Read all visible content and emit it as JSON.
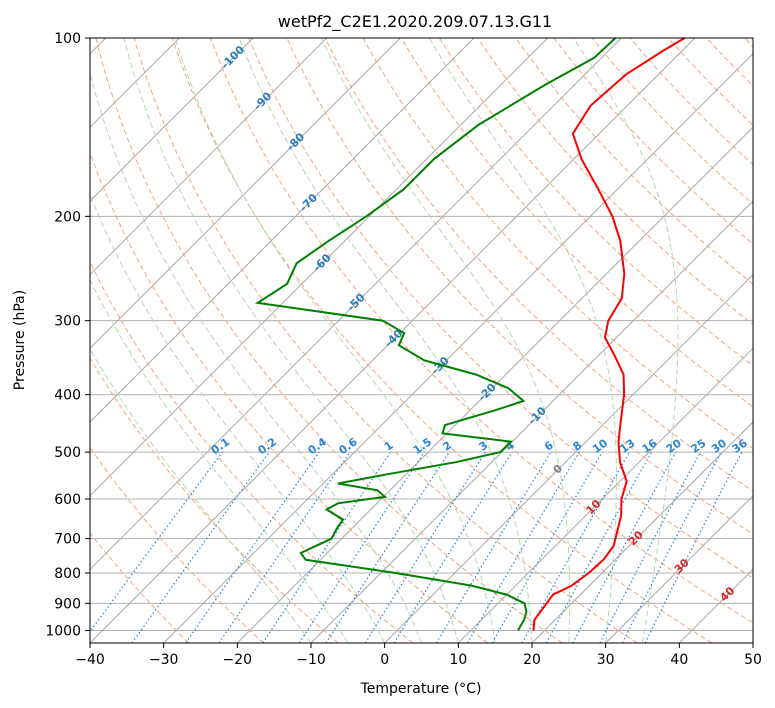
{
  "chart_data": {
    "type": "line",
    "title": "wetPf2_C2E1.2020.209.07.13.G11",
    "xlabel": "Temperature (°C)",
    "ylabel": "Pressure (hPa)",
    "xlim": [
      -40,
      50
    ],
    "ylim": [
      1050,
      100
    ],
    "y_scale": "log",
    "skew": "skew-T log-P diagram (isotherms slanted 45°)",
    "grid": true,
    "x_ticks": [
      "−40",
      "−30",
      "−20",
      "−10",
      "0",
      "10",
      "20",
      "30",
      "40",
      "50"
    ],
    "y_ticks": [
      "1000",
      "900",
      "800",
      "700",
      "600",
      "500",
      "400",
      "300",
      "200",
      "100"
    ],
    "temperature_profile": {
      "color": "#ff0000",
      "points": [
        {
          "p": 1000,
          "t": 18.5
        },
        {
          "p": 960,
          "t": 17.2
        },
        {
          "p": 930,
          "t": 16.9
        },
        {
          "p": 900,
          "t": 16.6
        },
        {
          "p": 870,
          "t": 16.3
        },
        {
          "p": 840,
          "t": 17.6
        },
        {
          "p": 800,
          "t": 18.2
        },
        {
          "p": 760,
          "t": 18.4
        },
        {
          "p": 720,
          "t": 17.9
        },
        {
          "p": 680,
          "t": 16.4
        },
        {
          "p": 640,
          "t": 14.8
        },
        {
          "p": 600,
          "t": 12.6
        },
        {
          "p": 560,
          "t": 10.9
        },
        {
          "p": 520,
          "t": 7.4
        },
        {
          "p": 480,
          "t": 4.4
        },
        {
          "p": 440,
          "t": 1.7
        },
        {
          "p": 400,
          "t": -1.2
        },
        {
          "p": 370,
          "t": -4.0
        },
        {
          "p": 345,
          "t": -7.6
        },
        {
          "p": 320,
          "t": -11.6
        },
        {
          "p": 300,
          "t": -13.4
        },
        {
          "p": 275,
          "t": -14.6
        },
        {
          "p": 250,
          "t": -17.6
        },
        {
          "p": 220,
          "t": -22.6
        },
        {
          "p": 200,
          "t": -27.0
        },
        {
          "p": 180,
          "t": -32.6
        },
        {
          "p": 160,
          "t": -39.0
        },
        {
          "p": 145,
          "t": -43.6
        },
        {
          "p": 130,
          "t": -45.0
        },
        {
          "p": 115,
          "t": -44.4
        },
        {
          "p": 105,
          "t": -42.6
        },
        {
          "p": 100,
          "t": -41.4
        }
      ]
    },
    "dewpoint_profile": {
      "color": "#008000",
      "points": [
        {
          "p": 1000,
          "t": 16.4
        },
        {
          "p": 960,
          "t": 15.8
        },
        {
          "p": 930,
          "t": 15.0
        },
        {
          "p": 900,
          "t": 13.6
        },
        {
          "p": 870,
          "t": 10.0
        },
        {
          "p": 840,
          "t": 4.0
        },
        {
          "p": 800,
          "t": -8.0
        },
        {
          "p": 760,
          "t": -22.0
        },
        {
          "p": 740,
          "t": -23.6
        },
        {
          "p": 700,
          "t": -21.4
        },
        {
          "p": 670,
          "t": -22.1
        },
        {
          "p": 650,
          "t": -22.4
        },
        {
          "p": 625,
          "t": -26.0
        },
        {
          "p": 610,
          "t": -25.3
        },
        {
          "p": 595,
          "t": -19.8
        },
        {
          "p": 580,
          "t": -21.7
        },
        {
          "p": 565,
          "t": -28.0
        },
        {
          "p": 545,
          "t": -22.6
        },
        {
          "p": 520,
          "t": -14.9
        },
        {
          "p": 500,
          "t": -10.2
        },
        {
          "p": 480,
          "t": -10.2
        },
        {
          "p": 465,
          "t": -20.6
        },
        {
          "p": 450,
          "t": -21.4
        },
        {
          "p": 425,
          "t": -16.6
        },
        {
          "p": 410,
          "t": -14.0
        },
        {
          "p": 390,
          "t": -17.8
        },
        {
          "p": 370,
          "t": -24.0
        },
        {
          "p": 350,
          "t": -33.0
        },
        {
          "p": 330,
          "t": -38.5
        },
        {
          "p": 315,
          "t": -39.4
        },
        {
          "p": 300,
          "t": -44.0
        },
        {
          "p": 280,
          "t": -63.4
        },
        {
          "p": 260,
          "t": -62.0
        },
        {
          "p": 240,
          "t": -63.5
        },
        {
          "p": 220,
          "t": -62.2
        },
        {
          "p": 200,
          "t": -60.4
        },
        {
          "p": 180,
          "t": -59.0
        },
        {
          "p": 160,
          "t": -59.0
        },
        {
          "p": 140,
          "t": -57.6
        },
        {
          "p": 120,
          "t": -54.0
        },
        {
          "p": 108,
          "t": -51.0
        },
        {
          "p": 100,
          "t": -50.8
        }
      ]
    },
    "reference_lines": {
      "dry_adiabats": {
        "color": "#d2691e",
        "labels": [],
        "values": [
          -30,
          -20,
          -10,
          0,
          10,
          20,
          30,
          40,
          50,
          60,
          70,
          80,
          90,
          100,
          110,
          120,
          130,
          140,
          150,
          160,
          170,
          180,
          190,
          200,
          210,
          220,
          230,
          240,
          250
        ]
      },
      "moist_adiabats": {
        "color": "#008000",
        "values": [
          -10,
          -5,
          0,
          5,
          10,
          15,
          20,
          25,
          30,
          35
        ]
      },
      "isotherm_labels": {
        "blue": [
          "-100",
          "-90",
          "-80",
          "-70",
          "-60",
          "-50",
          "-40",
          "-30",
          "-20",
          "-10"
        ],
        "gray": [
          "0"
        ],
        "red": [
          "10",
          "20",
          "30",
          "40"
        ]
      },
      "mixing_ratio_labels": [
        "0.1",
        "0.2",
        "0.4",
        "0.6",
        "1",
        "1.5",
        "2",
        "3",
        "4",
        "6",
        "8",
        "10",
        "13",
        "16",
        "20",
        "25",
        "30",
        "36"
      ]
    }
  }
}
